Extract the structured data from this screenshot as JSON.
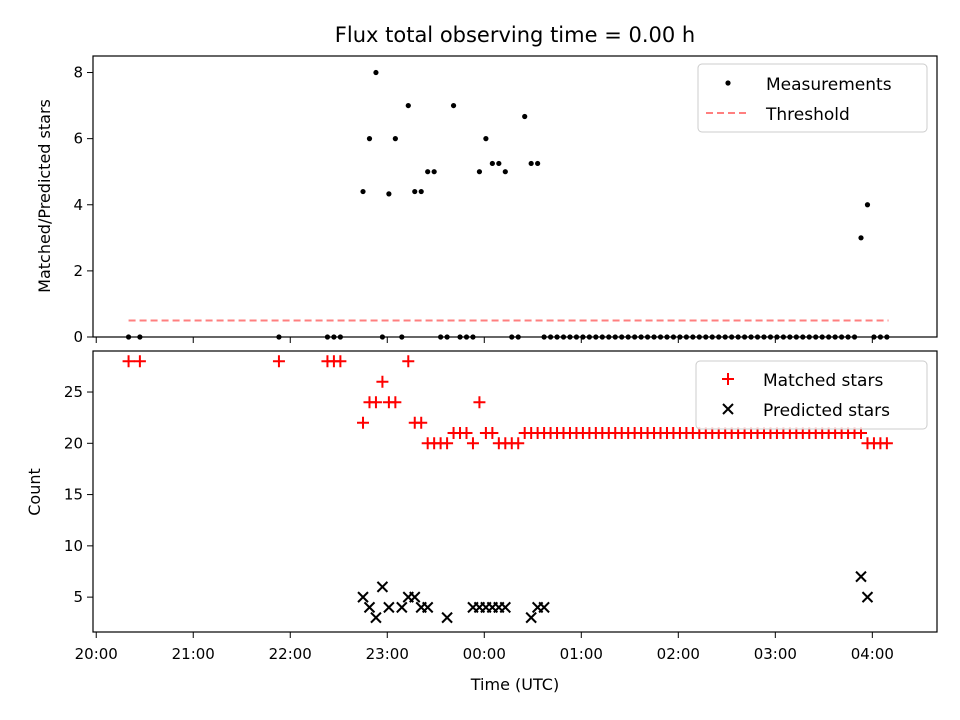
{
  "figure": {
    "title": "Flux total observing time = 0.00 h"
  },
  "chart_data": [
    {
      "type": "scatter",
      "ylabel": "Matched/Predicted stars",
      "ylim": [
        0,
        8.5
      ],
      "yticks": [
        0,
        2,
        4,
        6,
        8
      ],
      "legend": {
        "placement": "top-right",
        "entries": [
          "Measurements",
          "Threshold"
        ]
      },
      "series": [
        {
          "name": "Measurements",
          "marker": "dot",
          "color": "#000000",
          "points": [
            [
              "20:20",
              0
            ],
            [
              "20:27",
              0
            ],
            [
              "21:53",
              0
            ],
            [
              "22:23",
              0
            ],
            [
              "22:27",
              0
            ],
            [
              "22:31",
              0
            ],
            [
              "22:45",
              4.4
            ],
            [
              "22:49",
              6
            ],
            [
              "22:53",
              8
            ],
            [
              "22:57",
              0
            ],
            [
              "23:01",
              4.33
            ],
            [
              "23:05",
              6
            ],
            [
              "23:09",
              0
            ],
            [
              "23:13",
              7
            ],
            [
              "23:17",
              4.4
            ],
            [
              "23:21",
              4.4
            ],
            [
              "23:25",
              5
            ],
            [
              "23:29",
              5
            ],
            [
              "23:33",
              0
            ],
            [
              "23:37",
              0
            ],
            [
              "23:41",
              7
            ],
            [
              "23:45",
              0
            ],
            [
              "23:49",
              0
            ],
            [
              "23:53",
              0
            ],
            [
              "23:57",
              5
            ],
            [
              "00:01",
              6
            ],
            [
              "00:05",
              5.25
            ],
            [
              "00:09",
              5.25
            ],
            [
              "00:13",
              5
            ],
            [
              "00:17",
              0
            ],
            [
              "00:21",
              0
            ],
            [
              "00:25",
              6.67
            ],
            [
              "00:29",
              5.25
            ],
            [
              "00:33",
              5.25
            ],
            [
              "00:37",
              0
            ],
            [
              "00:41",
              0
            ],
            [
              "00:45",
              0
            ],
            [
              "00:49",
              0
            ],
            [
              "00:53",
              0
            ],
            [
              "00:57",
              0
            ],
            [
              "01:01",
              0
            ],
            [
              "01:05",
              0
            ],
            [
              "01:09",
              0
            ],
            [
              "01:13",
              0
            ],
            [
              "01:17",
              0
            ],
            [
              "01:21",
              0
            ],
            [
              "01:25",
              0
            ],
            [
              "01:29",
              0
            ],
            [
              "01:33",
              0
            ],
            [
              "01:37",
              0
            ],
            [
              "01:41",
              0
            ],
            [
              "01:45",
              0
            ],
            [
              "01:49",
              0
            ],
            [
              "01:53",
              0
            ],
            [
              "01:57",
              0
            ],
            [
              "02:01",
              0
            ],
            [
              "02:05",
              0
            ],
            [
              "02:09",
              0
            ],
            [
              "02:13",
              0
            ],
            [
              "02:17",
              0
            ],
            [
              "02:21",
              0
            ],
            [
              "02:25",
              0
            ],
            [
              "02:29",
              0
            ],
            [
              "02:33",
              0
            ],
            [
              "02:37",
              0
            ],
            [
              "02:41",
              0
            ],
            [
              "02:45",
              0
            ],
            [
              "02:49",
              0
            ],
            [
              "02:53",
              0
            ],
            [
              "02:57",
              0
            ],
            [
              "03:01",
              0
            ],
            [
              "03:05",
              0
            ],
            [
              "03:09",
              0
            ],
            [
              "03:13",
              0
            ],
            [
              "03:17",
              0
            ],
            [
              "03:21",
              0
            ],
            [
              "03:25",
              0
            ],
            [
              "03:29",
              0
            ],
            [
              "03:33",
              0
            ],
            [
              "03:37",
              0
            ],
            [
              "03:41",
              0
            ],
            [
              "03:45",
              0
            ],
            [
              "03:49",
              0
            ],
            [
              "03:53",
              3
            ],
            [
              "03:57",
              4
            ],
            [
              "04:01",
              0
            ],
            [
              "04:05",
              0
            ],
            [
              "04:09",
              0
            ]
          ]
        },
        {
          "name": "Threshold",
          "style": "dashed-line",
          "color": "#ff7f7f",
          "points": [
            [
              "20:20",
              0.5
            ],
            [
              "04:10",
              0.5
            ]
          ]
        }
      ]
    },
    {
      "type": "scatter",
      "xlabel": "Time (UTC)",
      "ylabel": "Count",
      "ylim": [
        1.6,
        29
      ],
      "yticks": [
        5,
        10,
        15,
        20,
        25
      ],
      "xticks": [
        "20:00",
        "21:00",
        "22:00",
        "23:00",
        "00:00",
        "01:00",
        "02:00",
        "03:00",
        "04:00"
      ],
      "legend": {
        "placement": "top-right",
        "entries": [
          "Matched stars",
          "Predicted stars"
        ]
      },
      "series": [
        {
          "name": "Matched stars",
          "marker": "plus",
          "color": "#ff0000",
          "points": [
            [
              "20:20",
              28
            ],
            [
              "20:27",
              28
            ],
            [
              "21:53",
              28
            ],
            [
              "22:23",
              28
            ],
            [
              "22:27",
              28
            ],
            [
              "22:31",
              28
            ],
            [
              "22:45",
              22
            ],
            [
              "22:49",
              24
            ],
            [
              "22:53",
              24
            ],
            [
              "22:57",
              26
            ],
            [
              "23:01",
              24
            ],
            [
              "23:05",
              24
            ],
            [
              "23:13",
              28
            ],
            [
              "23:17",
              22
            ],
            [
              "23:21",
              22
            ],
            [
              "23:25",
              20
            ],
            [
              "23:29",
              20
            ],
            [
              "23:33",
              20
            ],
            [
              "23:37",
              20
            ],
            [
              "23:41",
              21
            ],
            [
              "23:45",
              21
            ],
            [
              "23:49",
              21
            ],
            [
              "23:53",
              20
            ],
            [
              "23:57",
              24
            ],
            [
              "00:01",
              21
            ],
            [
              "00:05",
              21
            ],
            [
              "00:09",
              20
            ],
            [
              "00:13",
              20
            ],
            [
              "00:17",
              20
            ],
            [
              "00:21",
              20
            ],
            [
              "00:25",
              21
            ],
            [
              "00:29",
              21
            ],
            [
              "00:33",
              21
            ],
            [
              "00:37",
              21
            ],
            [
              "00:41",
              21
            ],
            [
              "00:45",
              21
            ],
            [
              "00:49",
              21
            ],
            [
              "00:53",
              21
            ],
            [
              "00:57",
              21
            ],
            [
              "01:01",
              21
            ],
            [
              "01:05",
              21
            ],
            [
              "01:09",
              21
            ],
            [
              "01:13",
              21
            ],
            [
              "01:17",
              21
            ],
            [
              "01:21",
              21
            ],
            [
              "01:25",
              21
            ],
            [
              "01:29",
              21
            ],
            [
              "01:33",
              21
            ],
            [
              "01:37",
              21
            ],
            [
              "01:41",
              21
            ],
            [
              "01:45",
              21
            ],
            [
              "01:49",
              21
            ],
            [
              "01:53",
              21
            ],
            [
              "01:57",
              21
            ],
            [
              "02:01",
              21
            ],
            [
              "02:05",
              21
            ],
            [
              "02:09",
              21
            ],
            [
              "02:13",
              21
            ],
            [
              "02:17",
              21
            ],
            [
              "02:21",
              21
            ],
            [
              "02:25",
              21
            ],
            [
              "02:29",
              21
            ],
            [
              "02:33",
              21
            ],
            [
              "02:37",
              21
            ],
            [
              "02:41",
              21
            ],
            [
              "02:45",
              21
            ],
            [
              "02:49",
              21
            ],
            [
              "02:53",
              21
            ],
            [
              "02:57",
              21
            ],
            [
              "03:01",
              21
            ],
            [
              "03:05",
              21
            ],
            [
              "03:09",
              21
            ],
            [
              "03:13",
              21
            ],
            [
              "03:17",
              21
            ],
            [
              "03:21",
              21
            ],
            [
              "03:25",
              21
            ],
            [
              "03:29",
              21
            ],
            [
              "03:33",
              21
            ],
            [
              "03:37",
              21
            ],
            [
              "03:41",
              21
            ],
            [
              "03:45",
              21
            ],
            [
              "03:49",
              21
            ],
            [
              "03:53",
              21
            ],
            [
              "03:57",
              20
            ],
            [
              "04:01",
              20
            ],
            [
              "04:05",
              20
            ],
            [
              "04:09",
              20
            ]
          ]
        },
        {
          "name": "Predicted stars",
          "marker": "x",
          "color": "#000000",
          "points": [
            [
              "22:45",
              5
            ],
            [
              "22:49",
              4
            ],
            [
              "22:53",
              3
            ],
            [
              "22:57",
              6
            ],
            [
              "23:01",
              4
            ],
            [
              "23:09",
              4
            ],
            [
              "23:13",
              5
            ],
            [
              "23:17",
              5
            ],
            [
              "23:21",
              4
            ],
            [
              "23:25",
              4
            ],
            [
              "23:37",
              3
            ],
            [
              "23:53",
              4
            ],
            [
              "23:57",
              4
            ],
            [
              "00:01",
              4
            ],
            [
              "00:05",
              4
            ],
            [
              "00:09",
              4
            ],
            [
              "00:13",
              4
            ],
            [
              "00:29",
              3
            ],
            [
              "00:33",
              4
            ],
            [
              "00:37",
              4
            ],
            [
              "03:53",
              7
            ],
            [
              "03:57",
              5
            ]
          ]
        }
      ]
    }
  ]
}
